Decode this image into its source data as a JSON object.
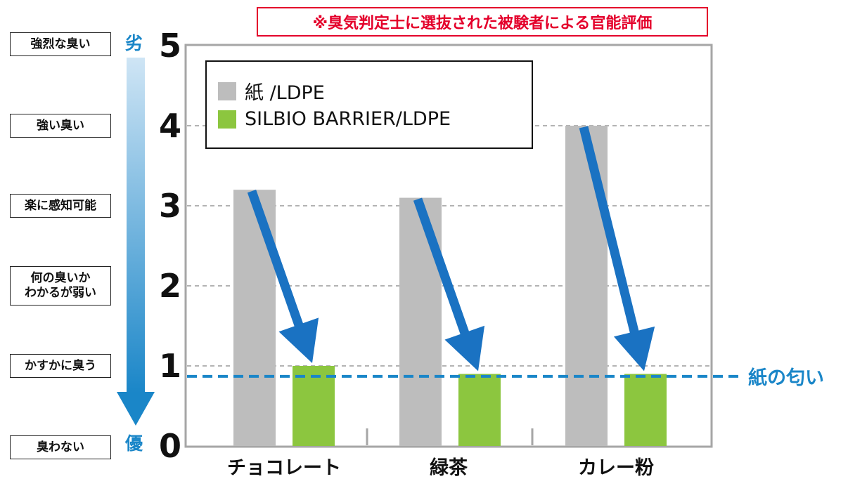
{
  "note": "※臭気判定士に選抜された被験者による官能評価",
  "intensity_scale": [
    {
      "value": 5,
      "label": "強烈な臭い"
    },
    {
      "value": 4,
      "label": "強い臭い"
    },
    {
      "value": 3,
      "label": "楽に感知可能"
    },
    {
      "value": 2,
      "label": "何の臭いか\nわかるが弱い"
    },
    {
      "value": 1,
      "label": "かすかに臭う"
    },
    {
      "value": 0,
      "label": "臭わない"
    }
  ],
  "quality": {
    "worse": "劣",
    "better": "優"
  },
  "paper_odor_label": "紙の匂い",
  "colors": {
    "paper": "#bdbdbd",
    "silbio": "#8cc63f",
    "accent_blue": "#1a86c8",
    "arrow_blue": "#1a72c2",
    "note_red": "#e4002b"
  },
  "chart_data": {
    "type": "bar",
    "title": "",
    "xlabel": "",
    "ylabel": "",
    "categories": [
      "チョコレート",
      "緑茶",
      "カレー粉"
    ],
    "series": [
      {
        "name": "紙 /LDPE",
        "values": [
          3.2,
          3.1,
          4.0
        ]
      },
      {
        "name": "SILBIO BARRIER/LDPE",
        "values": [
          1.0,
          0.9,
          0.9
        ]
      }
    ],
    "ylim": [
      0,
      5
    ],
    "yticks": [
      0,
      1,
      2,
      3,
      4,
      5
    ],
    "reference_line": {
      "label": "紙の匂い",
      "value": 0.87
    },
    "grid": true,
    "legend_position": "top-left"
  }
}
